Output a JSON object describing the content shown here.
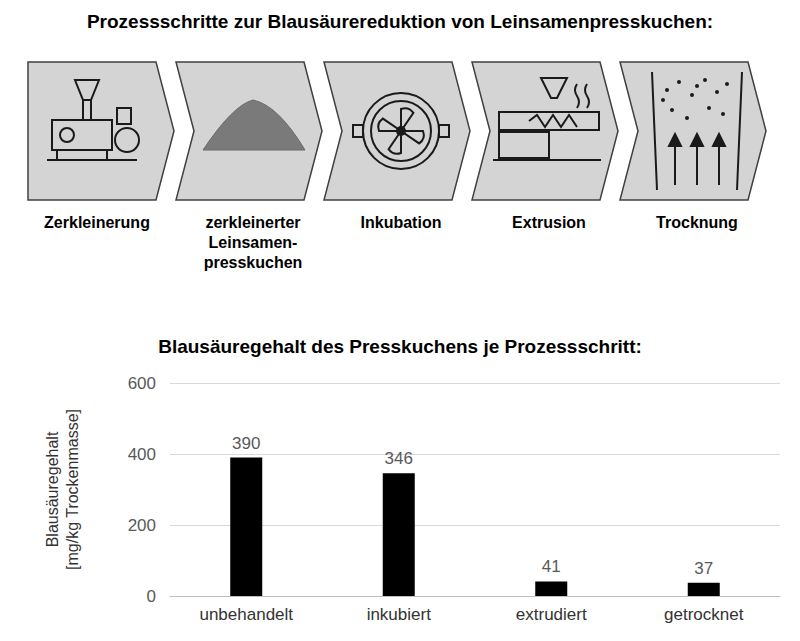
{
  "process": {
    "title": "Prozessschritte zur Blausäurereduktion von Leinsamenpresskuchen:",
    "steps": [
      [
        "Zerkleinerung"
      ],
      [
        "zerkleinerter",
        "Leinsamen-",
        "presskuchen"
      ],
      [
        "Inkubation"
      ],
      [
        "Extrusion"
      ],
      [
        "Trocknung"
      ]
    ]
  },
  "chart_data": {
    "type": "bar",
    "title": "Blausäuregehalt des Presskuchens je Prozessschritt:",
    "y_label": "Blausäuregehalt [mg/kg Trockenmasse]",
    "categories": [
      "unbehandelt",
      "inkubiert",
      "extrudiert",
      "getrocknet"
    ],
    "values": [
      390,
      346,
      41,
      37
    ],
    "color": "#000000",
    "ylim": [
      0,
      600
    ],
    "yticks": [
      0,
      200,
      400,
      600
    ],
    "grid": true,
    "data_labels": true
  }
}
